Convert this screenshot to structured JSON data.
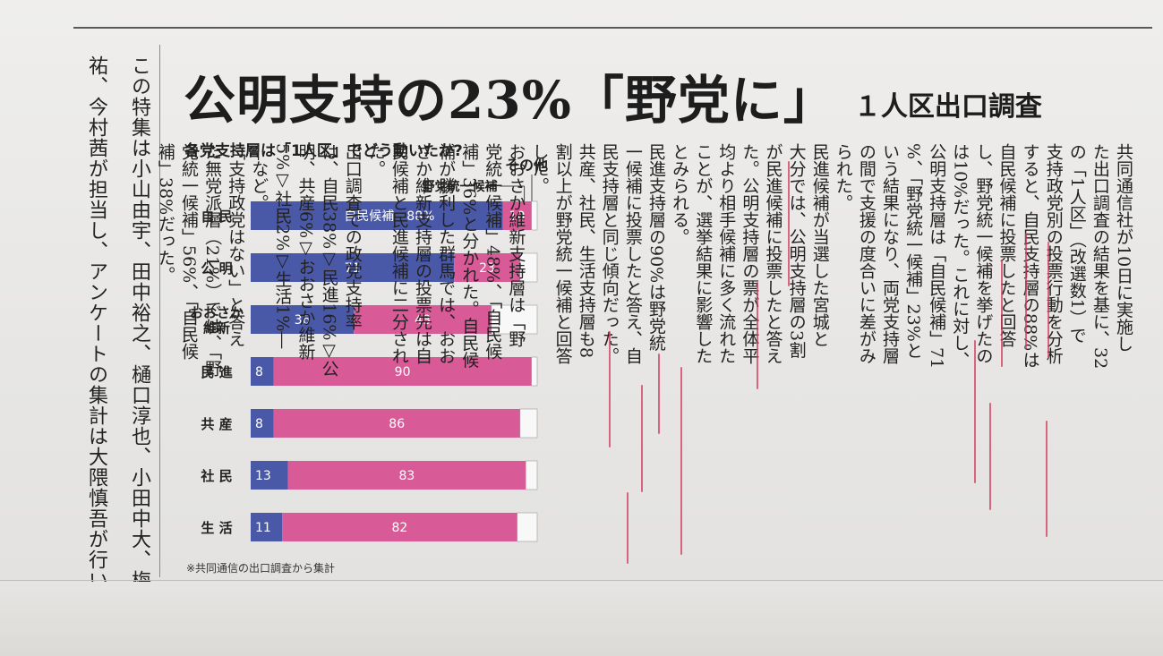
{
  "credit": {
    "lines": [
      "この特集は小山由宇、田中裕之、樋口淳也、小田中大、梅田啓",
      "祐、今村茜が担当し、アンケートの集計は大隈慎吾が行いました。"
    ]
  },
  "headline": {
    "main": "公明支持の23%「野党に」",
    "sub": "１人区出口調査"
  },
  "chart_data": {
    "type": "bar",
    "title": "各党支持層は「1人区」でどう動いたか?",
    "legend_label_opposition": "野党統一候補",
    "legend_label_other": "その他",
    "categories": [
      "自 民",
      "公 明",
      "おおさか\n維新",
      "民 進",
      "共 産",
      "社 民",
      "生 活"
    ],
    "series": [
      {
        "name": "自民候補",
        "values": [
          88,
          71,
          36,
          8,
          8,
          13,
          11
        ],
        "color": "#4a58a8"
      },
      {
        "name": "野党統一候補",
        "values": [
          10,
          23,
          48,
          90,
          86,
          83,
          82
        ],
        "color": "#d85a96"
      },
      {
        "name": "その他",
        "values": [
          2,
          6,
          16,
          2,
          6,
          4,
          7
        ],
        "color": "#f8f8f8"
      }
    ],
    "first_bar_label": "自民候補　88%",
    "ylim": [
      0,
      100
    ],
    "note": "※共同通信の出口調査から集計"
  },
  "article": {
    "columns": [
      "共同通信社が10日に実施し",
      "た出口調査の結果を基に、32",
      "の「1人区」（改選数1）で",
      "支持政党別の投票行動を分析",
      "すると、自民支持層の88%は",
      "自民候補に投票したと回答",
      "し、野党統一候補を挙げたの",
      "は10%だった。これに対し、",
      "公明支持層は「自民候補」71",
      "%、「野党統一候補」23%と",
      "いう結果になり、両党支持層",
      "の間で支援の度合いに差がみ",
      "られた。",
      "民進候補が当選した宮城と",
      "大分では、公明支持層の3割",
      "が民進候補に投票したと答え",
      "た。公明支持層の票が全体平",
      "均より相手候補に多く流れた",
      "ことが、選挙結果に影響した",
      "とみられる。",
      "民進支持層の90%は野党統",
      "一候補に投票したと答え、自",
      "民支持層と同じ傾向だった。",
      "共産、社民、生活支持層も8",
      "割以上が野党統一候補と回答",
      "した。",
      "おおさか維新支持層は「野",
      "党統一候補」48%、「自民候",
      "補」36%と分かれた。自民候",
      "補が勝利した群馬では、おお",
      "さか維新支持層の投票先は自",
      "民候補と民進候補に二分され",
      "た。",
      "出口調査での政党支持率",
      "は、自民38%▽民進16%▽公",
      "明、共産6%▽おおさか維新",
      "5%▽社民2%▽生活1%―",
      "―など。",
      "「支持政党はない」と答え",
      "た無党派層（21%）では、「野",
      "党統一候補」56%、「自民候",
      "補」38%だった。"
    ]
  }
}
